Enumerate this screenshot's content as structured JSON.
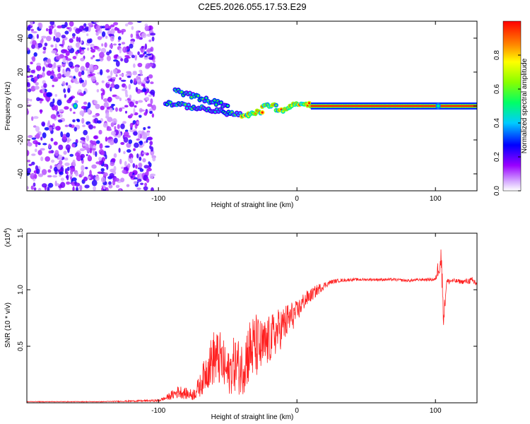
{
  "figure_title": "C2E5.2026.055.17.53.E29",
  "chart_data": [
    {
      "type": "heatmap",
      "panel": "spectrogram",
      "xlabel": "Height of straight line (km)",
      "ylabel": "Frequency (Hz)",
      "xlim": [
        -195,
        130
      ],
      "ylim": [
        -50,
        50
      ],
      "x_ticks": [
        -100,
        0,
        100
      ],
      "x_tick_labels": [
        "-100",
        "0",
        "100"
      ],
      "y_ticks": [
        -40,
        -20,
        0,
        20,
        40
      ],
      "y_tick_labels": [
        "-40",
        "-20",
        "0",
        "20",
        "40"
      ],
      "colorbar": {
        "label": "Normalized spectral amplitude",
        "range": [
          0,
          1
        ],
        "ticks": [
          0.0,
          0.2,
          0.4,
          0.6,
          0.8
        ],
        "tick_labels": [
          "0.0",
          "0.2",
          "0.4",
          "0.6",
          "0.8"
        ],
        "colormap": [
          "#ffffff",
          "#9900ff",
          "#0000ff",
          "#00ccff",
          "#00ff66",
          "#88ff00",
          "#ffff00",
          "#ff8800",
          "#ff0000"
        ]
      },
      "noise_region_x": [
        -195,
        -103
      ],
      "track_segments": [
        {
          "x": [
            -95,
            -35
          ],
          "freq": [
            2,
            -6
          ]
        },
        {
          "x": [
            -88,
            -50
          ],
          "freq": [
            9,
            0
          ]
        },
        {
          "x": [
            -35,
            -25
          ],
          "freq": [
            -4,
            -4
          ]
        },
        {
          "x": [
            -25,
            -15
          ],
          "freq": [
            0,
            0
          ]
        },
        {
          "x": [
            -15,
            -5
          ],
          "freq": [
            -2,
            -2
          ]
        },
        {
          "x": [
            -5,
            10
          ],
          "freq": [
            1,
            1
          ]
        },
        {
          "x": [
            10,
            130
          ],
          "freq": [
            0,
            0
          ]
        }
      ],
      "isolated_spots": [
        {
          "x": -160,
          "freq": 0
        },
        {
          "x": 102,
          "freq": 0
        }
      ]
    },
    {
      "type": "line",
      "panel": "snr",
      "xlabel": "Height of straight line (km)",
      "ylabel": "SNR (10 * v/v)",
      "y_multiplier": "(x10",
      "y_multiplier_exp": "4",
      "y_multiplier_close": ")",
      "xlim": [
        -195,
        130
      ],
      "ylim": [
        0,
        1.5
      ],
      "x_ticks": [
        -100,
        0,
        100
      ],
      "x_tick_labels": [
        "-100",
        "0",
        "100"
      ],
      "y_ticks": [
        0.5,
        1.0,
        1.5
      ],
      "y_tick_labels": [
        "0.5",
        "1.0",
        "1.5"
      ],
      "color": "#ff2020",
      "series": [
        {
          "name": "SNR",
          "x": [
            -195,
            -140,
            -100,
            -95,
            -90,
            -85,
            -80,
            -75,
            -70,
            -65,
            -60,
            -55,
            -50,
            -45,
            -40,
            -35,
            -30,
            -25,
            -20,
            -15,
            -10,
            -5,
            0,
            5,
            10,
            15,
            20,
            25,
            30,
            40,
            50,
            60,
            70,
            80,
            90,
            100,
            104,
            106,
            108,
            112,
            120,
            125,
            130
          ],
          "y": [
            0.01,
            0.01,
            0.02,
            0.04,
            0.07,
            0.1,
            0.08,
            0.07,
            0.15,
            0.3,
            0.4,
            0.38,
            0.25,
            0.35,
            0.3,
            0.45,
            0.5,
            0.48,
            0.55,
            0.62,
            0.68,
            0.75,
            0.8,
            0.9,
            0.95,
            1.0,
            1.04,
            1.07,
            1.08,
            1.09,
            1.09,
            1.09,
            1.09,
            1.08,
            1.09,
            1.09,
            1.3,
            0.75,
            1.07,
            1.08,
            1.07,
            1.08,
            1.06
          ],
          "noise_amp": [
            0.003,
            0.003,
            0.01,
            0.02,
            0.04,
            0.06,
            0.05,
            0.05,
            0.1,
            0.18,
            0.25,
            0.25,
            0.2,
            0.25,
            0.25,
            0.3,
            0.3,
            0.25,
            0.22,
            0.2,
            0.18,
            0.15,
            0.1,
            0.08,
            0.06,
            0.05,
            0.03,
            0.02,
            0.015,
            0.012,
            0.012,
            0.012,
            0.012,
            0.012,
            0.012,
            0.015,
            0.15,
            0.1,
            0.03,
            0.02,
            0.02,
            0.03,
            0.05
          ]
        }
      ]
    }
  ]
}
